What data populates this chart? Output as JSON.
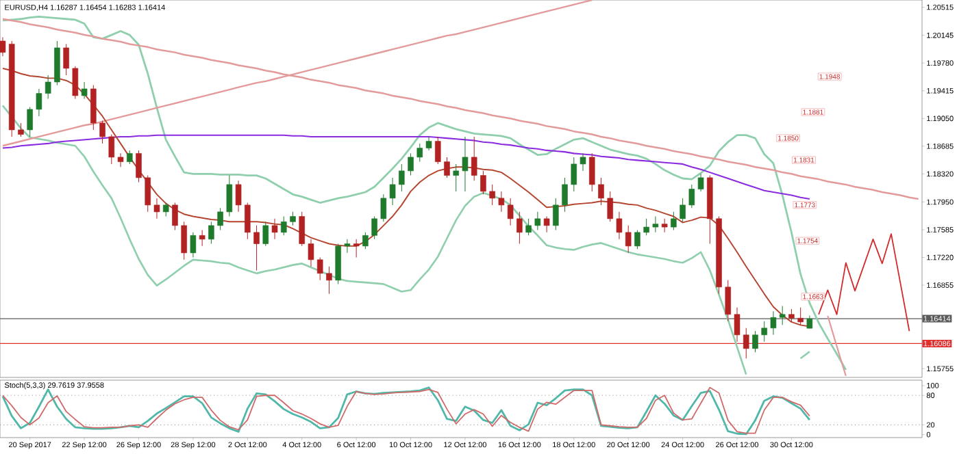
{
  "chart_data": [
    {
      "type": "candlestick",
      "title": "EURUSD,H4  1.16287 1.16454 1.16283 1.16414",
      "categories": [
        null,
        null,
        null,
        null,
        null,
        null,
        null,
        null,
        null,
        null,
        null,
        null,
        null,
        null,
        null,
        null,
        null,
        null,
        null,
        null,
        null,
        null,
        null,
        null,
        null,
        null,
        null,
        null,
        null,
        null,
        null,
        null,
        null,
        null,
        null,
        null,
        null,
        null,
        null,
        null,
        null,
        null,
        null,
        null,
        null,
        null,
        null,
        null,
        null,
        null,
        null,
        null,
        null,
        null,
        null,
        null,
        null,
        null,
        null,
        null,
        null,
        null,
        null,
        null,
        null,
        null,
        null,
        null,
        null,
        null,
        null,
        null,
        null,
        null,
        null,
        null,
        null,
        null,
        null,
        null,
        null,
        null,
        null,
        null,
        null,
        null,
        null,
        null,
        null,
        null,
        null,
        null,
        null,
        null,
        null,
        null,
        null,
        null,
        null,
        null,
        null,
        null
      ],
      "ohlc": [
        [
          1.2007,
          1.2012,
          1.1987,
          1.1992
        ],
        [
          1.2003,
          1.2007,
          1.1881,
          1.189
        ],
        [
          1.189,
          1.1899,
          1.1881,
          1.1884
        ],
        [
          1.189,
          1.192,
          1.1881,
          1.1917
        ],
        [
          1.1917,
          1.1944,
          1.1908,
          1.1938
        ],
        [
          1.1938,
          1.1962,
          1.1931,
          1.1953
        ],
        [
          1.1953,
          1.2007,
          1.1949,
          1.1998
        ],
        [
          1.1998,
          1.2003,
          1.1962,
          1.1971
        ],
        [
          1.1971,
          1.1974,
          1.1931,
          1.1935
        ],
        [
          1.1935,
          1.1953,
          1.1931,
          1.1944
        ],
        [
          1.1944,
          1.1949,
          1.189,
          1.1899
        ],
        [
          1.1899,
          1.1902,
          1.1872,
          1.1881
        ],
        [
          1.1881,
          1.1884,
          1.1845,
          1.1854
        ],
        [
          1.1854,
          1.1859,
          1.1841,
          1.1848
        ],
        [
          1.1848,
          1.1863,
          1.1845,
          1.1859
        ],
        [
          1.1859,
          1.1863,
          1.1821,
          1.1827
        ],
        [
          1.1827,
          1.183,
          1.1782,
          1.1791
        ],
        [
          1.1791,
          1.18,
          1.1773,
          1.1782
        ],
        [
          1.1782,
          1.1794,
          1.1776,
          1.1791
        ],
        [
          1.1791,
          1.1794,
          1.1758,
          1.1764
        ],
        [
          1.1764,
          1.1769,
          1.1719,
          1.1728
        ],
        [
          1.1728,
          1.1755,
          1.1722,
          1.1751
        ],
        [
          1.1751,
          1.1758,
          1.1737,
          1.1746
        ],
        [
          1.1746,
          1.1769,
          1.174,
          1.1764
        ],
        [
          1.1764,
          1.1787,
          1.1758,
          1.1782
        ],
        [
          1.1782,
          1.183,
          1.1776,
          1.1818
        ],
        [
          1.1818,
          1.1823,
          1.1782,
          1.1791
        ],
        [
          1.1791,
          1.1794,
          1.1746,
          1.1755
        ],
        [
          1.1755,
          1.1764,
          1.1705,
          1.174
        ],
        [
          1.174,
          1.1769,
          1.1737,
          1.1764
        ],
        [
          1.1764,
          1.1773,
          1.1746,
          1.1755
        ],
        [
          1.1755,
          1.1776,
          1.1751,
          1.1769
        ],
        [
          1.1769,
          1.1782,
          1.1764,
          1.1776
        ],
        [
          1.1776,
          1.1782,
          1.1737,
          1.174
        ],
        [
          1.174,
          1.1746,
          1.171,
          1.1719
        ],
        [
          1.1719,
          1.1722,
          1.1692,
          1.1701
        ],
        [
          1.1701,
          1.171,
          1.1674,
          1.1692
        ],
        [
          1.1692,
          1.174,
          1.1687,
          1.1737
        ],
        [
          1.1737,
          1.1746,
          1.1728,
          1.174
        ],
        [
          1.174,
          1.1746,
          1.1722,
          1.1737
        ],
        [
          1.1737,
          1.1755,
          1.1733,
          1.1751
        ],
        [
          1.1751,
          1.1776,
          1.1746,
          1.1773
        ],
        [
          1.1773,
          1.1805,
          1.1769,
          1.18
        ],
        [
          1.18,
          1.1827,
          1.1791,
          1.1818
        ],
        [
          1.1818,
          1.1845,
          1.1809,
          1.1836
        ],
        [
          1.1836,
          1.1859,
          1.183,
          1.1854
        ],
        [
          1.1854,
          1.1872,
          1.1848,
          1.1866
        ],
        [
          1.1866,
          1.1881,
          1.1863,
          1.1875
        ],
        [
          1.1875,
          1.1881,
          1.1845,
          1.1848
        ],
        [
          1.1848,
          1.1854,
          1.1827,
          1.183
        ],
        [
          1.183,
          1.1845,
          1.1809,
          1.1836
        ],
        [
          1.1836,
          1.1881,
          1.1809,
          1.1854
        ],
        [
          1.1854,
          1.1881,
          1.1823,
          1.183
        ],
        [
          1.183,
          1.1836,
          1.1805,
          1.1809
        ],
        [
          1.1809,
          1.1818,
          1.1791,
          1.18
        ],
        [
          1.18,
          1.1809,
          1.1782,
          1.1791
        ],
        [
          1.1791,
          1.18,
          1.1764,
          1.1773
        ],
        [
          1.1773,
          1.1782,
          1.174,
          1.1755
        ],
        [
          1.1755,
          1.1773,
          1.1751,
          1.1764
        ],
        [
          1.1764,
          1.1782,
          1.1758,
          1.1773
        ],
        [
          1.1773,
          1.1776,
          1.1755,
          1.1764
        ],
        [
          1.1764,
          1.18,
          1.1758,
          1.1791
        ],
        [
          1.1791,
          1.1827,
          1.1782,
          1.1818
        ],
        [
          1.1818,
          1.1854,
          1.1809,
          1.1845
        ],
        [
          1.1845,
          1.1859,
          1.1836,
          1.1854
        ],
        [
          1.1854,
          1.1859,
          1.1809,
          1.1818
        ],
        [
          1.1818,
          1.1827,
          1.1791,
          1.18
        ],
        [
          1.18,
          1.1809,
          1.1769,
          1.1773
        ],
        [
          1.1773,
          1.1782,
          1.1746,
          1.1755
        ],
        [
          1.1755,
          1.1764,
          1.1728,
          1.1737
        ],
        [
          1.1737,
          1.1758,
          1.1733,
          1.1755
        ],
        [
          1.1755,
          1.1773,
          1.1751,
          1.1762
        ],
        [
          1.1762,
          1.1776,
          1.1755,
          1.1766
        ],
        [
          1.1766,
          1.1773,
          1.1755,
          1.1762
        ],
        [
          1.1762,
          1.1782,
          1.1758,
          1.1773
        ],
        [
          1.1773,
          1.18,
          1.1769,
          1.1791
        ],
        [
          1.1791,
          1.1818,
          1.1787,
          1.1812
        ],
        [
          1.1812,
          1.1832,
          1.1809,
          1.1827
        ],
        [
          1.1827,
          1.183,
          1.174,
          1.1773
        ],
        [
          1.1773,
          1.1776,
          1.1674,
          1.1683
        ],
        [
          1.1683,
          1.1692,
          1.1638,
          1.1647
        ],
        [
          1.1647,
          1.1656,
          1.1611,
          1.162
        ],
        [
          1.162,
          1.1629,
          1.1589,
          1.1602
        ],
        [
          1.1602,
          1.1625,
          1.1597,
          1.162
        ],
        [
          1.162,
          1.1638,
          1.1611,
          1.1629
        ],
        [
          1.1629,
          1.1651,
          1.162,
          1.1643
        ],
        [
          1.1643,
          1.1658,
          1.1633,
          1.1647
        ],
        [
          1.1647,
          1.1654,
          1.1637,
          1.1642
        ],
        [
          1.1642,
          1.1656,
          1.1633,
          1.1637
        ],
        [
          1.16287,
          1.16454,
          1.16283,
          1.16414
        ],
        null,
        null,
        null,
        null,
        null,
        null,
        null,
        null,
        null,
        null,
        null,
        null
      ],
      "colors": [
        "#b22222",
        "#b22222",
        "#b22222",
        "#1f7a2c",
        "#1f7a2c",
        "#1f7a2c",
        "#1f7a2c",
        "#b22222",
        "#b22222",
        "#1f7a2c",
        "#b22222",
        "#b22222",
        "#b22222",
        "#b22222",
        "#1f7a2c",
        "#b22222",
        "#b22222",
        "#b22222",
        "#1f7a2c",
        "#b22222",
        "#b22222",
        "#1f7a2c",
        "#b22222",
        "#1f7a2c",
        "#1f7a2c",
        "#1f7a2c",
        "#b22222",
        "#b22222",
        "#b22222",
        "#1f7a2c",
        "#b22222",
        "#1f7a2c",
        "#1f7a2c",
        "#b22222",
        "#b22222",
        "#b22222",
        "#b22222",
        "#1f7a2c",
        "#1f7a2c",
        "#b22222",
        "#1f7a2c",
        "#1f7a2c",
        "#1f7a2c",
        "#1f7a2c",
        "#1f7a2c",
        "#1f7a2c",
        "#1f7a2c",
        "#1f7a2c",
        "#b22222",
        "#b22222",
        "#1f7a2c",
        "#1f7a2c",
        "#b22222",
        "#b22222",
        "#b22222",
        "#b22222",
        "#b22222",
        "#b22222",
        "#1f7a2c",
        "#1f7a2c",
        "#b22222",
        "#1f7a2c",
        "#1f7a2c",
        "#1f7a2c",
        "#1f7a2c",
        "#b22222",
        "#b22222",
        "#b22222",
        "#b22222",
        "#b22222",
        "#1f7a2c",
        "#1f7a2c",
        "#1f7a2c",
        "#b22222",
        "#1f7a2c",
        "#1f7a2c",
        "#1f7a2c",
        "#1f7a2c",
        "#b22222",
        "#b22222",
        "#b22222",
        "#b22222",
        "#b22222",
        "#1f7a2c",
        "#1f7a2c",
        "#1f7a2c",
        "#1f7a2c",
        "#b22222",
        "#b22222",
        "#1f7a2c",
        null,
        null,
        null,
        null,
        null,
        null,
        null,
        null,
        null,
        null,
        null,
        null
      ],
      "series": [
        {
          "type": "line",
          "color": "#8fcfae",
          "values": [
            1.2034,
            1.2035,
            1.2036,
            1.2038,
            1.2039,
            1.2038,
            1.2037,
            1.2036,
            1.2035,
            1.203,
            1.2012,
            1.201,
            1.2015,
            1.202,
            1.2015,
            1.2002,
            1.1964,
            1.1919,
            1.1877,
            1.1855,
            1.1834,
            1.1832,
            1.1832,
            1.1832,
            1.1831,
            1.1831,
            1.1831,
            1.183,
            1.183,
            1.1826,
            1.1819,
            1.1812,
            1.1805,
            1.1802,
            1.1798,
            1.1794,
            1.1797,
            1.18,
            1.1802,
            1.1805,
            1.1808,
            1.1815,
            1.1827,
            1.1839,
            1.1852,
            1.1867,
            1.1883,
            1.1893,
            1.1899,
            1.1895,
            1.1891,
            1.1888,
            1.1885,
            1.1884,
            1.1883,
            1.1882,
            1.1879,
            1.1871,
            1.1864,
            1.1857,
            1.1858,
            1.1865,
            1.1871,
            1.1877,
            1.1879,
            1.1874,
            1.1869,
            1.1864,
            1.1861,
            1.1858,
            1.1856,
            1.1852,
            1.1845,
            1.1837,
            1.1831,
            1.1826,
            1.1825,
            1.1833,
            1.1843,
            1.1862,
            1.1874,
            1.1883,
            1.1883,
            1.1879,
            1.1858,
            1.1846,
            1.1804,
            1.1755,
            1.17,
            1.1662,
            1.1636,
            1.1615,
            1.1595,
            1.1574,
            null,
            null,
            null,
            null,
            null,
            null,
            null,
            null
          ]
        },
        {
          "type": "line",
          "color": "#8fcfae",
          "values": [
            1.1922,
            1.1907,
            1.1892,
            1.188,
            1.1878,
            1.1876,
            1.1873,
            1.1871,
            1.1869,
            1.1855,
            1.1835,
            1.1817,
            1.18,
            1.1774,
            1.1746,
            1.172,
            1.1699,
            1.1685,
            1.1693,
            1.1702,
            1.1711,
            1.1719,
            1.1718,
            1.1717,
            1.1715,
            1.1714,
            1.1709,
            1.1705,
            1.1701,
            1.1704,
            1.1706,
            1.1709,
            1.1712,
            1.1714,
            1.1709,
            1.1704,
            1.1699,
            1.1694,
            1.1691,
            1.169,
            1.1689,
            1.1688,
            1.1687,
            1.1682,
            1.1677,
            1.1679,
            1.1693,
            1.1706,
            1.1723,
            1.1747,
            1.1771,
            1.179,
            1.1802,
            1.1807,
            1.1803,
            1.1799,
            1.1791,
            1.1777,
            1.1763,
            1.1751,
            1.1738,
            1.1735,
            1.1733,
            1.1732,
            1.1736,
            1.1739,
            1.1741,
            1.1737,
            1.1733,
            1.1729,
            1.1726,
            1.1724,
            1.1722,
            1.172,
            1.1717,
            1.1715,
            1.1721,
            1.1729,
            1.1705,
            1.1673,
            1.164,
            1.1604,
            1.1568,
            null,
            null,
            null,
            null,
            null,
            1.1589,
            1.1598,
            null,
            null,
            null,
            null,
            null,
            null,
            null,
            null,
            null,
            null,
            null,
            null
          ]
        },
        {
          "type": "line",
          "color": "#e39a9a",
          "values": [
            1.2036,
            1.2034,
            1.2032,
            1.2029,
            1.2027,
            1.2025,
            1.2022,
            1.202,
            1.2018,
            1.2015,
            1.2013,
            1.201,
            1.2008,
            1.2006,
            1.2003,
            1.2001,
            1.1999,
            1.1996,
            1.1994,
            1.1992,
            1.1989,
            1.1987,
            1.1985,
            1.1982,
            1.198,
            1.1978,
            1.1975,
            1.1973,
            1.1971,
            1.1968,
            1.1966,
            1.1963,
            1.1961,
            1.1959,
            1.1956,
            1.1954,
            1.1952,
            1.1949,
            1.1947,
            1.1945,
            1.1942,
            1.194,
            1.1938,
            1.1935,
            1.1933,
            1.1931,
            1.1928,
            1.1926,
            1.1924,
            1.1921,
            1.1919,
            1.1916,
            1.1914,
            1.1912,
            1.1909,
            1.1907,
            1.1905,
            1.1902,
            1.19,
            1.1898,
            1.1895,
            1.1893,
            1.1891,
            1.1888,
            1.1886,
            1.1884,
            1.1881,
            1.1879,
            1.1876,
            1.1874,
            1.1872,
            1.1869,
            1.1867,
            1.1865,
            1.1862,
            1.186,
            1.1858,
            1.1855,
            1.1853,
            1.1851,
            1.1848,
            1.1846,
            1.1844,
            1.1841,
            1.1839,
            1.1837,
            1.1834,
            1.1832,
            1.1829,
            1.1827,
            1.1825,
            1.1822,
            1.182,
            1.1818,
            1.1815,
            1.1813,
            1.1811,
            1.1808,
            1.1806,
            1.1804,
            1.1801,
            1.1799
          ]
        },
        {
          "type": "line",
          "color": "#e39a9a",
          "values": [
            1.1869,
            1.1872,
            1.1875,
            1.1878,
            1.1881,
            1.1884,
            1.1887,
            1.189,
            1.1893,
            1.1896,
            1.1898,
            1.1901,
            1.1904,
            1.1907,
            1.191,
            1.1913,
            1.1916,
            1.1919,
            1.1922,
            1.1925,
            1.1928,
            1.1931,
            1.1934,
            1.1937,
            1.194,
            1.1943,
            1.1946,
            1.1949,
            1.1952,
            1.1954,
            1.1957,
            1.196,
            1.1963,
            1.1966,
            1.1969,
            1.1972,
            1.1975,
            1.1978,
            1.1981,
            1.1984,
            1.1987,
            1.199,
            1.1993,
            1.1996,
            1.1999,
            1.2002,
            1.2005,
            1.2008,
            1.2011,
            1.2014,
            1.2016,
            1.2019,
            1.2022,
            1.2025,
            1.2028,
            1.2031,
            1.2034,
            1.2037,
            1.204,
            1.2043,
            1.2046,
            1.2049,
            1.2052,
            1.2055,
            1.2058,
            1.2061,
            null,
            null,
            null,
            null,
            null,
            null,
            null,
            null,
            null,
            null,
            null,
            null,
            null,
            null,
            null,
            null,
            null,
            null,
            null,
            null,
            null,
            null,
            null,
            null,
            null,
            null,
            null,
            null,
            null,
            null,
            null,
            null,
            null,
            null,
            null,
            null
          ]
        },
        {
          "type": "line",
          "color": "#e39a9a",
          "values": [
            null,
            null,
            null,
            null,
            null,
            null,
            null,
            null,
            null,
            null,
            null,
            null,
            null,
            null,
            null,
            null,
            null,
            null,
            null,
            null,
            null,
            null,
            null,
            null,
            null,
            null,
            null,
            null,
            null,
            null,
            null,
            null,
            null,
            null,
            null,
            null,
            null,
            null,
            null,
            null,
            null,
            null,
            null,
            null,
            null,
            null,
            null,
            null,
            null,
            null,
            null,
            null,
            null,
            null,
            null,
            null,
            null,
            null,
            null,
            null,
            null,
            null,
            null,
            null,
            null,
            null,
            null,
            null,
            null,
            null,
            null,
            null,
            null,
            null,
            null,
            null,
            null,
            null,
            null,
            null,
            null,
            null,
            null,
            null,
            null,
            null,
            null,
            null,
            null,
            null,
            null,
            1.1645,
            1.1605,
            1.1566,
            null,
            null,
            null,
            null,
            null,
            null,
            null,
            null
          ]
        },
        {
          "type": "line",
          "color": "#8b2be0",
          "values": [
            1.1866,
            1.1867,
            1.1869,
            1.187,
            1.1871,
            1.1872,
            1.1874,
            1.1875,
            1.1876,
            1.1877,
            1.1878,
            1.1879,
            1.188,
            1.1881,
            1.1881,
            1.1882,
            1.1882,
            1.1883,
            1.1883,
            1.1883,
            1.1883,
            1.1883,
            1.1883,
            1.1883,
            1.1883,
            1.1883,
            1.1883,
            1.1883,
            1.1883,
            1.1883,
            1.1883,
            1.1883,
            1.1882,
            1.1882,
            1.1881,
            1.1881,
            1.1881,
            1.1881,
            1.1881,
            1.1881,
            1.1881,
            1.1881,
            1.1881,
            1.1881,
            1.1881,
            1.1881,
            1.1881,
            1.1881,
            1.188,
            1.1879,
            1.1878,
            1.1877,
            1.1876,
            1.1874,
            1.1873,
            1.1871,
            1.187,
            1.1868,
            1.1866,
            1.1865,
            1.1863,
            1.1862,
            1.1861,
            1.1859,
            1.1858,
            1.1857,
            1.1855,
            1.1854,
            1.1853,
            1.1851,
            1.185,
            1.1849,
            1.1848,
            1.1847,
            1.1846,
            1.1845,
            1.1841,
            1.1838,
            1.1834,
            1.183,
            1.1826,
            1.1822,
            1.1818,
            1.1814,
            1.181,
            1.1808,
            1.1806,
            1.1804,
            1.1801,
            1.1799,
            null,
            null,
            null,
            null,
            null,
            null,
            null,
            null,
            null,
            null,
            null,
            null
          ]
        },
        {
          "type": "line",
          "color": "#b5452f",
          "values": [
            1.1971,
            1.1968,
            1.1964,
            1.1961,
            1.196,
            1.1958,
            1.1958,
            1.1955,
            1.1949,
            1.1937,
            1.1923,
            1.1908,
            1.189,
            1.1872,
            1.1854,
            1.1837,
            1.1821,
            1.1805,
            1.1793,
            1.1785,
            1.1779,
            1.1776,
            1.1774,
            1.1772,
            1.1771,
            1.1769,
            1.1769,
            1.1769,
            1.1769,
            1.1768,
            1.1766,
            1.1765,
            1.176,
            1.1754,
            1.1748,
            1.1744,
            1.174,
            1.1738,
            1.1737,
            1.1737,
            1.1743,
            1.1752,
            1.1764,
            1.1776,
            1.1791,
            1.1809,
            1.1821,
            1.183,
            1.1836,
            1.1839,
            1.1841,
            1.1841,
            1.184,
            1.1838,
            1.1837,
            1.1834,
            1.1826,
            1.1817,
            1.1808,
            1.1798,
            1.1788,
            1.1789,
            1.179,
            1.1792,
            1.1793,
            1.1794,
            1.1796,
            1.1795,
            1.1794,
            1.1792,
            1.1791,
            1.1787,
            1.1784,
            1.178,
            1.1776,
            1.1768,
            1.1771,
            1.1775,
            1.1774,
            1.1764,
            1.1747,
            1.1729,
            1.171,
            1.1692,
            1.1674,
            1.1657,
            1.1646,
            1.1637,
            1.1633,
            1.1631,
            null,
            null,
            null,
            null,
            null,
            null,
            null,
            null,
            null,
            null,
            null,
            null
          ]
        },
        {
          "type": "line",
          "color": "#d22b2b",
          "values": [
            null,
            null,
            null,
            null,
            null,
            null,
            null,
            null,
            null,
            null,
            null,
            null,
            null,
            null,
            null,
            null,
            null,
            null,
            null,
            null,
            null,
            null,
            null,
            null,
            null,
            null,
            null,
            null,
            null,
            null,
            null,
            null,
            null,
            null,
            null,
            null,
            null,
            null,
            null,
            null,
            null,
            null,
            null,
            null,
            null,
            null,
            null,
            null,
            null,
            null,
            null,
            null,
            null,
            null,
            null,
            null,
            null,
            null,
            null,
            null,
            null,
            null,
            null,
            null,
            null,
            null,
            null,
            null,
            null,
            null,
            null,
            null,
            null,
            null,
            null,
            null,
            null,
            null,
            null,
            null,
            null,
            null,
            null,
            null,
            null,
            null,
            null,
            null,
            null,
            null,
            1.1647,
            1.1679,
            1.1647,
            1.1715,
            1.1678,
            1.1712,
            1.1746,
            1.1714,
            1.1753,
            1.1689,
            1.1625,
            null
          ]
        }
      ],
      "ref_lines": [
        {
          "axis": "y",
          "value": 1.16414,
          "label": "1.16414",
          "color": "#5a5a5a"
        },
        {
          "axis": "y",
          "value": 1.16086,
          "label": "1.16086",
          "color": "#e03030"
        }
      ],
      "annotations": [
        "1.1948",
        "1.1881",
        "1.1850",
        "1.1831",
        "1.1773",
        "1.1754",
        "1.1663"
      ],
      "ylim": [
        1.1564,
        1.2061
      ],
      "yticks": [
        1.20515,
        1.20145,
        {
          "value": 1.1978,
          "label": "1.19780"
        },
        1.19415,
        {
          "value": 1.1905,
          "label": "1.19050"
        },
        1.18685,
        {
          "value": 1.1832,
          "label": "1.18320"
        },
        {
          "value": 1.1795,
          "label": "1.17950"
        },
        1.17585,
        {
          "value": 1.1722,
          "label": "1.17220"
        },
        1.16855,
        1.15755
      ],
      "tick_labels": "y"
    },
    {
      "type": "line",
      "title": "Stoch(5,3,3) 29.7619 37.9558",
      "categories": [
        null,
        null,
        null,
        "20 Sep 2017",
        null,
        null,
        null,
        null,
        null,
        "22 Sep 12:00",
        null,
        null,
        null,
        null,
        null,
        "26 Sep 12:00",
        null,
        null,
        null,
        null,
        null,
        "28 Sep 12:00",
        null,
        null,
        null,
        null,
        null,
        "2 Oct 12:00",
        null,
        null,
        null,
        null,
        null,
        "4 Oct 12:00",
        null,
        null,
        null,
        null,
        null,
        "6 Oct 12:00",
        null,
        null,
        null,
        null,
        null,
        "10 Oct 12:00",
        null,
        null,
        null,
        null,
        null,
        "12 Oct 12:00",
        null,
        null,
        null,
        null,
        null,
        "16 Oct 12:00",
        null,
        null,
        null,
        null,
        null,
        "18 Oct 12:00",
        null,
        null,
        null,
        null,
        null,
        "20 Oct 12:00",
        null,
        null,
        null,
        null,
        null,
        "24 Oct 12:00",
        null,
        null,
        null,
        null,
        null,
        "26 Oct 12:00",
        null,
        null,
        null,
        null,
        null,
        "30 Oct 12:00",
        null,
        null,
        null,
        null,
        null,
        null,
        null,
        null,
        null,
        null,
        null,
        null,
        null,
        null
      ],
      "series": [
        {
          "color": "#4fb8a8",
          "values": [
            78,
            38,
            13,
            24,
            57,
            92,
            57,
            32,
            15,
            13,
            12,
            12,
            13,
            15,
            18,
            15,
            28,
            43,
            54,
            66,
            78,
            78,
            64,
            35,
            23,
            13,
            6,
            53,
            84,
            82,
            68,
            52,
            42,
            35,
            26,
            13,
            15,
            34,
            82,
            88,
            84,
            83,
            85,
            86,
            87,
            88,
            90,
            96,
            70,
            32,
            28,
            57,
            49,
            30,
            24,
            50,
            18,
            9,
            21,
            65,
            60,
            74,
            90,
            92,
            92,
            80,
            18,
            16,
            14,
            13,
            15,
            47,
            80,
            63,
            39,
            30,
            58,
            85,
            89,
            51,
            7,
            2,
            1,
            29,
            69,
            78,
            75,
            64,
            53,
            30,
            null,
            null,
            null,
            null,
            null,
            null,
            null,
            null,
            null,
            null,
            null,
            null
          ]
        },
        {
          "color": "#d06a6a",
          "values": [
            80,
            59,
            35,
            20,
            34,
            65,
            79,
            47,
            31,
            16,
            14,
            14,
            15,
            15,
            18,
            20,
            15,
            33,
            50,
            63,
            71,
            76,
            76,
            50,
            29,
            16,
            10,
            30,
            78,
            80,
            80,
            65,
            49,
            42,
            33,
            22,
            15,
            19,
            58,
            88,
            84,
            82,
            83,
            85,
            86,
            87,
            88,
            92,
            86,
            52,
            22,
            42,
            51,
            42,
            17,
            39,
            25,
            15,
            7,
            52,
            66,
            62,
            76,
            90,
            90,
            90,
            20,
            18,
            16,
            15,
            15,
            33,
            70,
            80,
            44,
            30,
            32,
            64,
            96,
            85,
            29,
            6,
            3,
            3,
            50,
            76,
            76,
            67,
            60,
            38,
            null,
            null,
            null,
            null,
            null,
            null,
            null,
            null,
            null,
            null,
            null,
            null
          ]
        }
      ],
      "ref_lines": [
        {
          "axis": "y",
          "value": 20,
          "color": "#a0a0a0",
          "line_style": "dotted"
        },
        {
          "axis": "y",
          "value": 80,
          "color": "#a0a0a0",
          "line_style": "dotted"
        }
      ],
      "ylim": [
        -6,
        111
      ],
      "yticks": [
        0,
        20,
        80,
        100
      ]
    }
  ]
}
